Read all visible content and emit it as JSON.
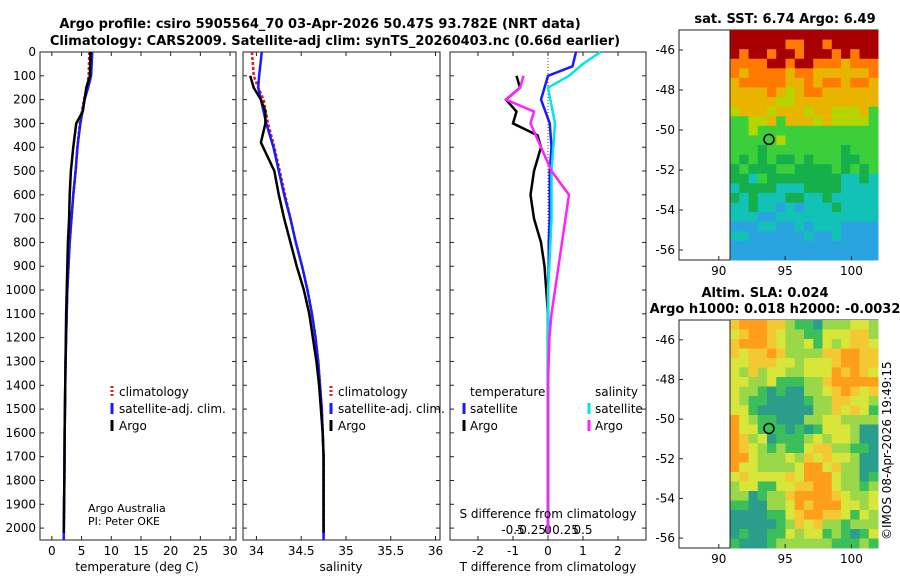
{
  "titles": {
    "line1": "Argo profile: csiro 5905564_70 03-Apr-2026 50.47S 93.782E (NRT data)",
    "line2": "Climatology: CARS2009. Satellite-adj clim: synTS_20260403.nc (0.66d earlier)",
    "sst": "sat. SST: 6.74 Argo: 6.49",
    "sla1": "Altim. SLA: 0.024",
    "sla2": "Argo h1000: 0.018 h2000: -0.0032"
  },
  "colors": {
    "clim": "#e41a1c",
    "sat": "#1a1aff",
    "argo": "#000000",
    "sat_s": "#00e5e5",
    "argo_s": "#ff22ff"
  },
  "depth_ticks": [
    "0",
    "100",
    "200",
    "300",
    "400",
    "500",
    "600",
    "700",
    "800",
    "900",
    "1000",
    "1100",
    "1200",
    "1300",
    "1400",
    "1500",
    "1600",
    "1700",
    "1800",
    "1900",
    "2000"
  ],
  "credit": {
    "line1": "Argo Australia",
    "line2": "PI: Peter OKE"
  },
  "watermark": "©IMOS 08-Apr-2026 19:49:15",
  "legends": {
    "temp": [
      "climatology",
      "satellite-adj. clim.",
      "Argo"
    ],
    "sal": [
      "climatology",
      "satellite-adj. clim.",
      "Argo"
    ],
    "diff_t_head": "temperature",
    "diff_s_head": "salinity",
    "diff_t": [
      "satellite",
      "Argo"
    ],
    "diff_s": [
      "satellite",
      "Argo"
    ]
  },
  "chart_data": [
    {
      "type": "line",
      "id": "temperature",
      "xlabel": "temperature (deg C)",
      "ylabel": "depth",
      "xlim": [
        -2,
        31
      ],
      "ylim": [
        2050,
        0
      ],
      "xticks": [
        "0",
        "5",
        "10",
        "15",
        "20",
        "25",
        "30"
      ],
      "series": [
        {
          "name": "climatology",
          "x": [
            6.3,
            6.2,
            5.9,
            5.4,
            4.7,
            4.3,
            4.0,
            3.6,
            3.3,
            3.0,
            2.8,
            2.6,
            2.5,
            2.4,
            2.3,
            2.25,
            2.2,
            2.15,
            2.1,
            2.05,
            2.0
          ],
          "y": [
            0,
            100,
            150,
            200,
            300,
            400,
            500,
            600,
            700,
            800,
            900,
            1000,
            1100,
            1200,
            1300,
            1400,
            1500,
            1600,
            1800,
            1900,
            2050
          ]
        },
        {
          "name": "satellite-adj. clim.",
          "x": [
            6.8,
            6.6,
            6.1,
            5.5,
            4.8,
            4.3,
            4.0,
            3.6,
            3.3,
            3.0,
            2.8,
            2.6,
            2.5,
            2.4,
            2.3,
            2.25,
            2.2,
            2.15,
            2.1,
            2.05,
            2.0
          ],
          "y": [
            0,
            100,
            150,
            200,
            300,
            400,
            500,
            600,
            700,
            800,
            900,
            1000,
            1100,
            1200,
            1300,
            1400,
            1500,
            1600,
            1800,
            1900,
            2050
          ]
        },
        {
          "name": "Argo",
          "x": [
            6.5,
            6.4,
            5.8,
            5.2,
            4.1,
            3.6,
            3.2,
            3.0,
            2.9,
            2.7,
            2.6,
            2.5,
            2.4,
            2.35,
            2.3,
            2.25,
            2.2,
            2.15,
            2.1,
            2.05,
            2.0
          ],
          "y": [
            0,
            100,
            150,
            250,
            300,
            400,
            500,
            600,
            700,
            800,
            900,
            1000,
            1100,
            1200,
            1300,
            1400,
            1500,
            1600,
            1800,
            1900,
            2020
          ]
        }
      ]
    },
    {
      "type": "line",
      "id": "salinity",
      "xlabel": "salinity",
      "ylabel": "depth",
      "xlim": [
        33.85,
        36.05
      ],
      "ylim": [
        2050,
        0
      ],
      "xticks": [
        "34",
        "34.5",
        "35",
        "35.5",
        "36"
      ],
      "series": [
        {
          "name": "climatology",
          "x": [
            33.95,
            33.97,
            34.02,
            34.08,
            34.13,
            34.2,
            34.26,
            34.32,
            34.38,
            34.44,
            34.51,
            34.57,
            34.62,
            34.66,
            34.69,
            34.71,
            34.73,
            34.74,
            34.75,
            34.75,
            34.75,
            34.75
          ],
          "y": [
            0,
            100,
            150,
            200,
            300,
            400,
            500,
            600,
            700,
            800,
            900,
            1000,
            1100,
            1200,
            1300,
            1400,
            1500,
            1600,
            1700,
            1800,
            1900,
            2050
          ]
        },
        {
          "name": "satellite-adj. clim.",
          "x": [
            34.06,
            34.03,
            34.02,
            34.05,
            34.11,
            34.19,
            34.25,
            34.31,
            34.38,
            34.44,
            34.51,
            34.57,
            34.62,
            34.66,
            34.69,
            34.71,
            34.73,
            34.74,
            34.75,
            34.75,
            34.75,
            34.75
          ],
          "y": [
            0,
            100,
            150,
            200,
            300,
            400,
            500,
            600,
            700,
            800,
            900,
            1000,
            1100,
            1200,
            1300,
            1400,
            1500,
            1600,
            1700,
            1800,
            1900,
            2050
          ]
        },
        {
          "name": "Argo",
          "x": [
            33.93,
            33.97,
            34.05,
            34.1,
            34.1,
            34.05,
            34.1,
            34.2,
            34.25,
            34.31,
            34.38,
            34.45,
            34.53,
            34.59,
            34.63,
            34.67,
            34.7,
            34.72,
            34.74,
            34.75,
            34.75,
            34.75,
            34.75
          ],
          "y": [
            100,
            150,
            200,
            250,
            300,
            380,
            420,
            500,
            600,
            700,
            800,
            900,
            1000,
            1100,
            1200,
            1300,
            1400,
            1500,
            1600,
            1700,
            1800,
            1900,
            2020
          ]
        }
      ]
    },
    {
      "type": "line",
      "id": "difference",
      "xlabel": "T difference from climatology",
      "xlabel_top": "S difference from climatology",
      "xlim": [
        -2.8,
        2.8
      ],
      "ylim": [
        2050,
        0
      ],
      "xticks": [
        "-2",
        "-1",
        "0",
        "1",
        "2"
      ],
      "xticks_s": [
        "-0.5",
        "-0.25",
        "0",
        "0.25",
        "0.5"
      ],
      "series": [
        {
          "name": "T satellite",
          "x": [
            0.8,
            0.7,
            0.0,
            -0.2,
            0.05,
            0.1,
            0.05,
            0.05,
            0.05,
            0.02,
            0.02,
            0.0,
            0.0,
            0.0,
            0.0,
            0.0,
            0.0,
            0.0,
            0.0,
            0.0,
            0.0
          ],
          "y": [
            0,
            60,
            100,
            200,
            300,
            400,
            500,
            600,
            700,
            800,
            900,
            1000,
            1100,
            1200,
            1300,
            1400,
            1500,
            1600,
            1700,
            1900,
            2020
          ]
        },
        {
          "name": "T Argo",
          "x": [
            -0.9,
            -0.8,
            -1.2,
            -0.9,
            -1.0,
            -0.3,
            -0.2,
            -0.4,
            -0.5,
            -0.4,
            -0.2,
            -0.1,
            -0.05,
            0.0,
            0.0,
            0.0,
            0.0,
            0.0,
            0.0,
            0.0
          ],
          "y": [
            100,
            150,
            200,
            250,
            300,
            350,
            400,
            500,
            600,
            700,
            800,
            900,
            1000,
            1100,
            1200,
            1300,
            1400,
            1600,
            1800,
            2020
          ]
        },
        {
          "name": "S satellite",
          "x": [
            0.75,
            0.5,
            0.3,
            0.0,
            0.1,
            0.05,
            0.05,
            0.02,
            0.0,
            0.0,
            0.0,
            0.0,
            0.0,
            0.0,
            0.0,
            0.0
          ],
          "y": [
            0,
            50,
            100,
            150,
            300,
            500,
            700,
            900,
            1000,
            1100,
            1200,
            1300,
            1400,
            1600,
            1800,
            2020
          ]
        },
        {
          "name": "S Argo",
          "x": [
            -0.35,
            -0.4,
            -0.6,
            -0.2,
            -0.25,
            -0.1,
            0.05,
            0.3,
            0.25,
            0.2,
            0.15,
            0.1,
            0.05,
            0.02,
            0.0,
            0.0,
            0.0
          ],
          "y": [
            100,
            150,
            200,
            250,
            300,
            400,
            500,
            600,
            700,
            800,
            900,
            1000,
            1100,
            1200,
            1400,
            1600,
            2020
          ]
        }
      ]
    },
    {
      "type": "heatmap",
      "id": "sst_map",
      "title": "sat. SST: 6.74 Argo: 6.49",
      "xlim": [
        87,
        102
      ],
      "ylim": [
        -56.5,
        -45
      ],
      "xticks": [
        "90",
        "95",
        "100"
      ],
      "yticks": [
        "-46",
        "-48",
        "-50",
        "-52",
        "-54",
        "-56"
      ],
      "marker": {
        "lon": 93.782,
        "lat": -50.47
      }
    },
    {
      "type": "heatmap",
      "id": "sla_map",
      "title": "Altim. SLA: 0.024",
      "xlim": [
        87,
        102
      ],
      "ylim": [
        -56.5,
        -45
      ],
      "xticks": [
        "90",
        "95",
        "100"
      ],
      "yticks": [
        "-46",
        "-48",
        "-50",
        "-52",
        "-54",
        "-56"
      ],
      "marker": {
        "lon": 93.782,
        "lat": -50.47
      }
    }
  ]
}
